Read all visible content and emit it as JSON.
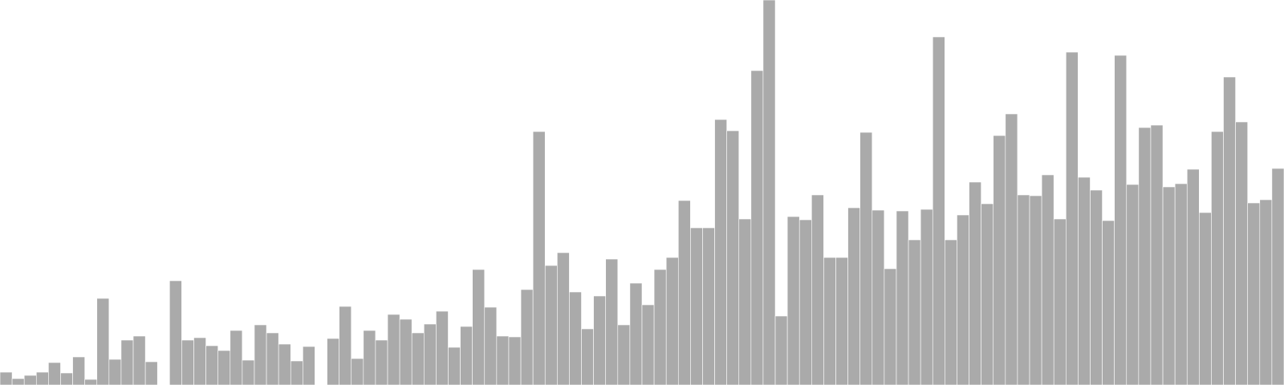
{
  "chart_data": {
    "type": "bar",
    "title": "",
    "xlabel": "",
    "ylabel": "",
    "grid": false,
    "legend": "none",
    "bar_color": "#aaaaaa",
    "ylim": [
      0,
      480
    ],
    "values": [
      16,
      8,
      12,
      16,
      28,
      15,
      35,
      7,
      108,
      32,
      56,
      61,
      29,
      0,
      130,
      56,
      59,
      49,
      43,
      68,
      31,
      75,
      65,
      51,
      30,
      48,
      0,
      58,
      98,
      33,
      68,
      56,
      88,
      82,
      65,
      76,
      92,
      47,
      73,
      144,
      97,
      61,
      60,
      119,
      316,
      149,
      165,
      116,
      70,
      111,
      157,
      75,
      127,
      100,
      144,
      159,
      230,
      196,
      196,
      331,
      317,
      207,
      392,
      480,
      86,
      210,
      206,
      237,
      159,
      159,
      221,
      315,
      218,
      145,
      217,
      181,
      219,
      434,
      181,
      212,
      253,
      226,
      311,
      338,
      237,
      236,
      262,
      207,
      415,
      259,
      243,
      205,
      411,
      250,
      321,
      324,
      247,
      251,
      269,
      215,
      316,
      384,
      328,
      227,
      231,
      270
    ]
  }
}
